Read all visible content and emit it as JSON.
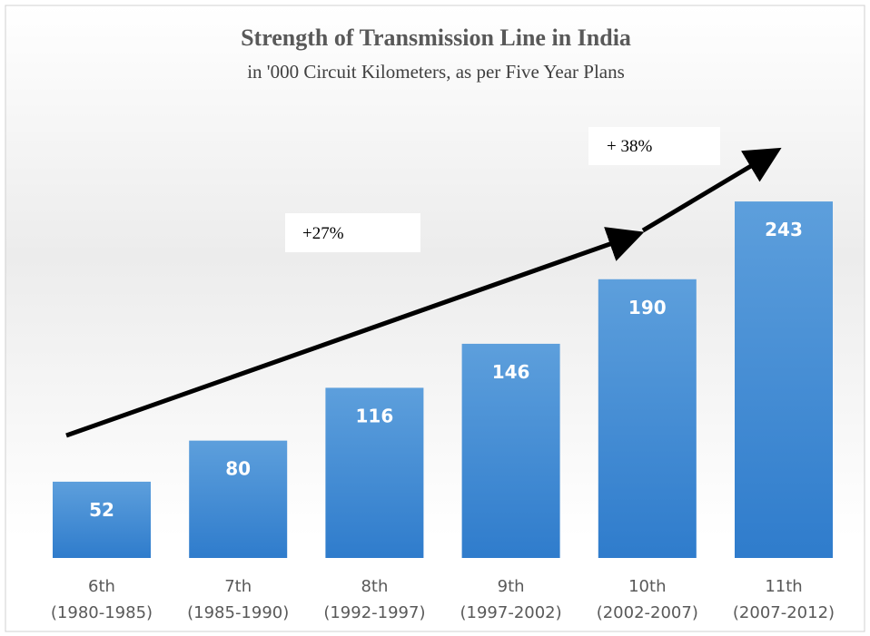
{
  "chart_data": {
    "type": "bar",
    "title": "Strength of Transmission Line in India",
    "subtitle": "in '000 Circuit Kilometers, as per Five Year Plans",
    "categories": [
      [
        "6th",
        "(1980-1985)"
      ],
      [
        "7th",
        "(1985-1990)"
      ],
      [
        "8th",
        "(1992-1997)"
      ],
      [
        "9th",
        "(1997-2002)"
      ],
      [
        "10th",
        "(2002-2007)"
      ],
      [
        "11th",
        "(2007-2012)"
      ]
    ],
    "values": [
      52,
      80,
      116,
      146,
      190,
      243
    ],
    "color": "#4a8fd4",
    "annotations": [
      "+27%",
      "+ 38%"
    ]
  }
}
